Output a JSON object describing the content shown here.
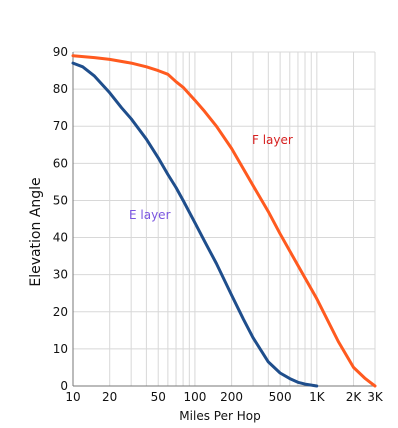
{
  "chart_data": {
    "type": "line",
    "title": "",
    "xlabel": "Miles Per Hop",
    "ylabel": "Elevation Angle",
    "x_scale": "log",
    "xlim": [
      10,
      3000
    ],
    "ylim": [
      0,
      90
    ],
    "grid": true,
    "x_ticks": [
      10,
      20,
      50,
      100,
      200,
      500,
      1000,
      2000,
      3000
    ],
    "x_tick_labels": [
      "10",
      "20",
      "50",
      "100",
      "200",
      "500",
      "1K",
      "2K",
      "3K"
    ],
    "y_ticks": [
      0,
      10,
      20,
      30,
      40,
      50,
      60,
      70,
      80,
      90
    ],
    "series": [
      {
        "name": "F layer",
        "color": "#ff5a1f",
        "x": [
          10,
          15,
          20,
          30,
          40,
          50,
          60,
          70,
          80,
          100,
          120,
          150,
          200,
          300,
          400,
          500,
          700,
          1000,
          1500,
          2000,
          2500,
          3000
        ],
        "y": [
          89,
          88.5,
          88,
          87,
          86,
          85,
          84,
          82,
          80.5,
          77,
          74,
          70,
          64,
          54,
          47,
          41,
          32.5,
          23.5,
          12,
          5,
          2,
          0
        ]
      },
      {
        "name": "E layer",
        "color": "#1f4e8c",
        "x": [
          10,
          12,
          15,
          20,
          25,
          30,
          40,
          50,
          60,
          70,
          80,
          100,
          120,
          150,
          200,
          250,
          300,
          400,
          500,
          600,
          700,
          800,
          1000
        ],
        "y": [
          87,
          86,
          83.5,
          79,
          75,
          72,
          66.5,
          61.5,
          57,
          53.5,
          50,
          44,
          39,
          33,
          24.5,
          18,
          13,
          6.5,
          3.5,
          2,
          1,
          0.5,
          0
        ]
      }
    ]
  }
}
